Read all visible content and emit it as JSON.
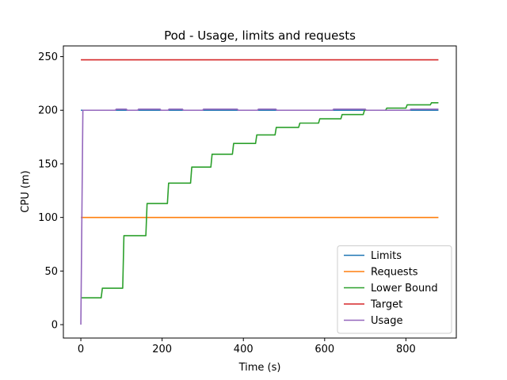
{
  "chart_data": {
    "type": "line",
    "title": "Pod - Usage, limits and requests",
    "xlabel": "Time (s)",
    "ylabel": "CPU (m)",
    "xlim": [
      -43,
      924
    ],
    "ylim": [
      -12.5,
      260
    ],
    "xticks": [
      0,
      200,
      400,
      600,
      800
    ],
    "yticks": [
      0,
      50,
      100,
      150,
      200,
      250
    ],
    "grid": false,
    "legend": "lower-right",
    "series": [
      {
        "name": "Limits",
        "color": "#1f77b4",
        "x": [
          0,
          880
        ],
        "y": [
          200,
          200
        ]
      },
      {
        "name": "Requests",
        "color": "#ff7f0e",
        "x": [
          0,
          880
        ],
        "y": [
          100,
          100
        ]
      },
      {
        "name": "Lower Bound",
        "color": "#2ca02c",
        "x": [
          0,
          50,
          53,
          103,
          106,
          160,
          163,
          213,
          216,
          270,
          273,
          320,
          323,
          373,
          376,
          430,
          433,
          478,
          481,
          536,
          539,
          585,
          588,
          640,
          643,
          695,
          698,
          750,
          753,
          800,
          803,
          845,
          848,
          860,
          863,
          880
        ],
        "y": [
          25,
          25,
          34,
          34,
          83,
          83,
          113,
          113,
          132,
          132,
          147,
          147,
          159,
          159,
          169,
          169,
          177,
          177,
          184,
          184,
          188,
          188,
          192,
          192,
          196,
          196,
          200,
          200,
          202,
          202,
          205,
          205,
          205,
          205,
          207,
          207
        ]
      },
      {
        "name": "Target",
        "color": "#d62728",
        "x": [
          0,
          880
        ],
        "y": [
          247,
          247
        ]
      },
      {
        "name": "Usage",
        "color": "#9467bd",
        "x": [
          0,
          5,
          85,
          87,
          112,
          114,
          140,
          142,
          195,
          197,
          215,
          217,
          250,
          252,
          300,
          302,
          385,
          387,
          435,
          437,
          480,
          482,
          620,
          622,
          700,
          702,
          810,
          812,
          880
        ],
        "y": [
          0,
          200,
          200,
          201,
          201,
          200,
          200,
          201,
          201,
          200,
          200,
          201,
          201,
          200,
          200,
          201,
          201,
          200,
          200,
          201,
          201,
          200,
          200,
          201,
          201,
          200,
          200,
          201,
          201
        ]
      }
    ]
  }
}
